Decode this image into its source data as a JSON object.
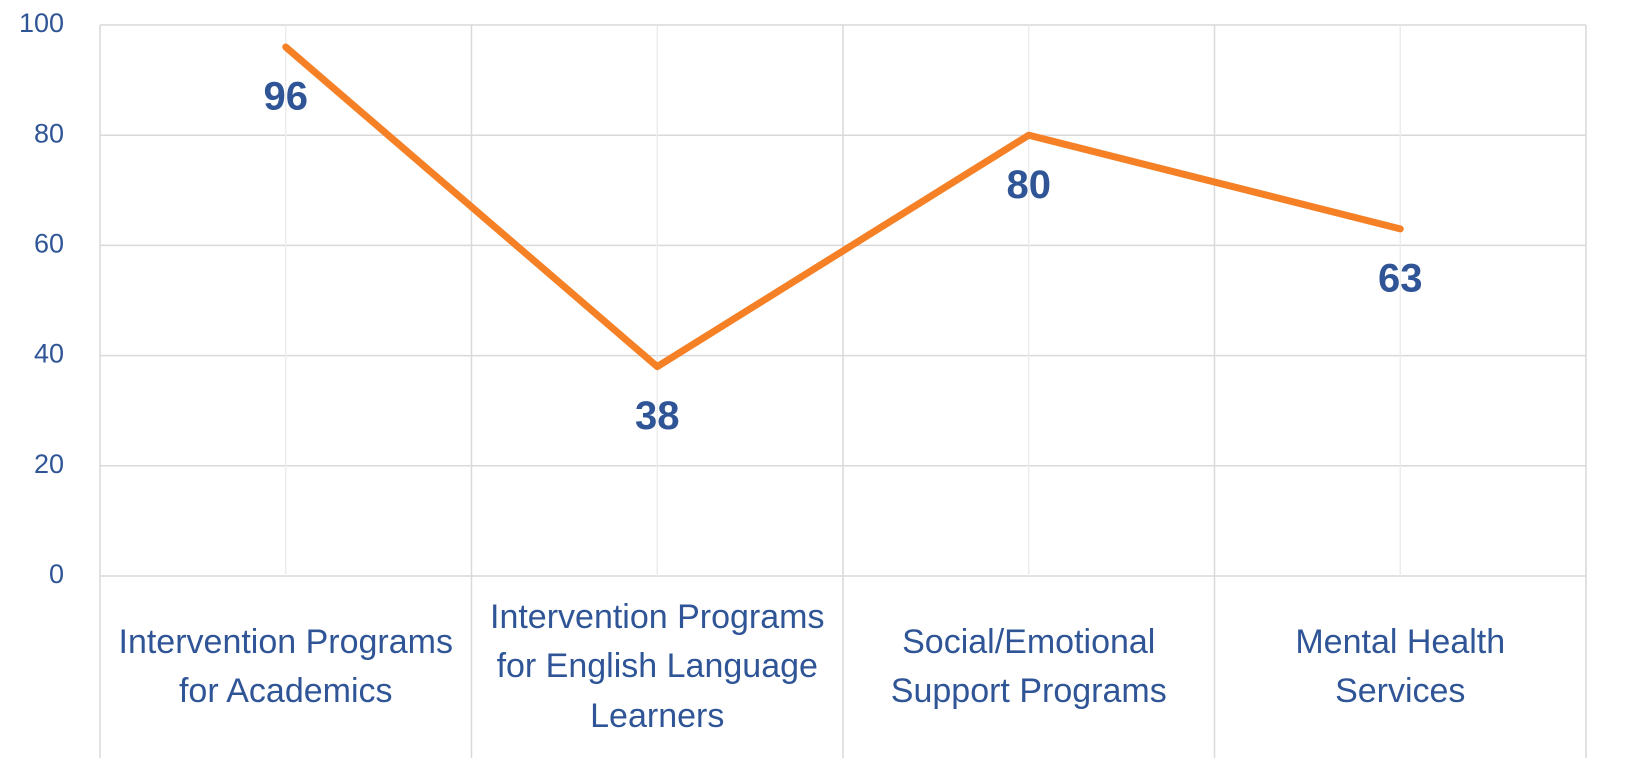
{
  "chart_data": {
    "type": "line",
    "categories": [
      "Intervention Programs for Academics",
      "Intervention Programs for English Language Learners",
      "Social/Emotional Support Programs",
      "Mental Health Services"
    ],
    "series": [
      {
        "name": "Series1",
        "color": "#f58025",
        "values": [
          96,
          38,
          80,
          63
        ]
      }
    ],
    "ylim": [
      0,
      100
    ],
    "yticks": [
      0,
      20,
      40,
      60,
      80,
      100
    ],
    "grid": true,
    "label_color": "#2f5597"
  }
}
